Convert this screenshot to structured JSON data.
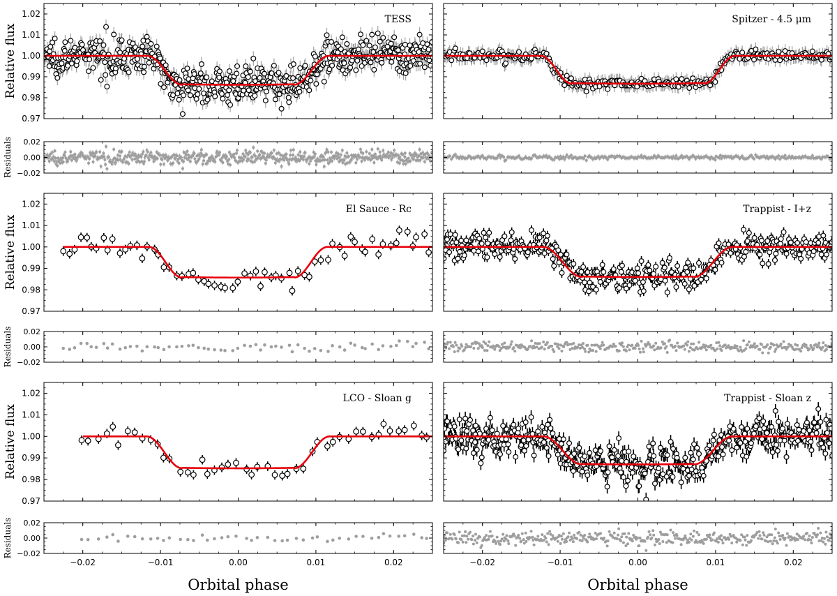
{
  "chart_data": {
    "type": "scatter",
    "xlabel": "Orbital phase",
    "main_ylabel": "Relative flux",
    "residual_ylabel": "Residuals",
    "xlim": [
      -0.025,
      0.025
    ],
    "x_ticks": [
      -0.02,
      -0.01,
      0.0,
      0.01,
      0.02
    ],
    "x_tick_labels": [
      "−0.02",
      "−0.01",
      "0.00",
      "0.01",
      "0.02"
    ],
    "flux_ylim": [
      0.97,
      1.025
    ],
    "flux_ticks": [
      0.97,
      0.98,
      0.99,
      1.0,
      1.01,
      1.02
    ],
    "flux_tick_labels": [
      "0.97",
      "0.98",
      "0.99",
      "1.00",
      "1.01",
      "1.02"
    ],
    "residual_ylim": [
      -0.02,
      0.02
    ],
    "residual_ticks": [
      -0.02,
      0.0,
      0.02
    ],
    "residual_tick_labels": [
      "−0.02",
      "0.00",
      "0.02"
    ],
    "model_color": "#e8000b",
    "point_edge_color": "#000000",
    "point_face_color": "#ffffff",
    "residual_color": "#9e9e9e",
    "panels": [
      {
        "title": "TESS",
        "model": {
          "depth": 0.0138,
          "t_contact1": -0.0117,
          "t_contact2": -0.0072,
          "t_contact3": 0.0072,
          "t_contact4": 0.0117
        },
        "observations": {
          "x_range": [
            -0.025,
            0.025
          ],
          "n_points": 600,
          "scatter": 0.0042,
          "error_bar": 0.0035
        },
        "residuals": {
          "scatter": 0.0035
        }
      },
      {
        "title": "Spitzer - 4.5 μm",
        "model": {
          "depth": 0.0133,
          "t_contact1": -0.0125,
          "t_contact2": -0.0085,
          "t_contact3": 0.0085,
          "t_contact4": 0.0125
        },
        "observations": {
          "x_range": [
            -0.025,
            0.025
          ],
          "n_points": 300,
          "scatter": 0.0014,
          "error_bar": 0.0033
        },
        "residuals": {
          "scatter": 0.0014
        }
      },
      {
        "title": "El Sauce - Rc",
        "model": {
          "depth": 0.0143,
          "t_contact1": -0.0115,
          "t_contact2": -0.0072,
          "t_contact3": 0.0072,
          "t_contact4": 0.0115
        },
        "observations": {
          "x_range": [
            -0.0225,
            0.0245
          ],
          "n_points": 66,
          "scatter": 0.0032,
          "error_bar": 0.0022
        },
        "residuals": {
          "scatter": 0.0032
        }
      },
      {
        "title": "Trappist - I+z",
        "model": {
          "depth": 0.014,
          "t_contact1": -0.0122,
          "t_contact2": -0.0072,
          "t_contact3": 0.0072,
          "t_contact4": 0.0122
        },
        "observations": {
          "x_range": [
            -0.025,
            0.025
          ],
          "n_points": 360,
          "scatter": 0.0033,
          "error_bar": 0.0023
        },
        "residuals": {
          "scatter": 0.0033
        }
      },
      {
        "title": "LCO - Sloan g",
        "model": {
          "depth": 0.0148,
          "t_contact1": -0.0118,
          "t_contact2": -0.0072,
          "t_contact3": 0.0072,
          "t_contact4": 0.0118
        },
        "observations": {
          "x_range": [
            -0.02,
            0.0245
          ],
          "n_points": 48,
          "scatter": 0.0024,
          "error_bar": 0.0022
        },
        "residuals": {
          "scatter": 0.0024
        }
      },
      {
        "title": "Trappist - Sloan z",
        "model": {
          "depth": 0.013,
          "t_contact1": -0.0122,
          "t_contact2": -0.0072,
          "t_contact3": 0.0072,
          "t_contact4": 0.0122
        },
        "observations": {
          "x_range": [
            -0.025,
            0.025
          ],
          "n_points": 400,
          "scatter": 0.0045,
          "error_bar": 0.0032
        },
        "residuals": {
          "scatter": 0.0045
        }
      }
    ]
  }
}
